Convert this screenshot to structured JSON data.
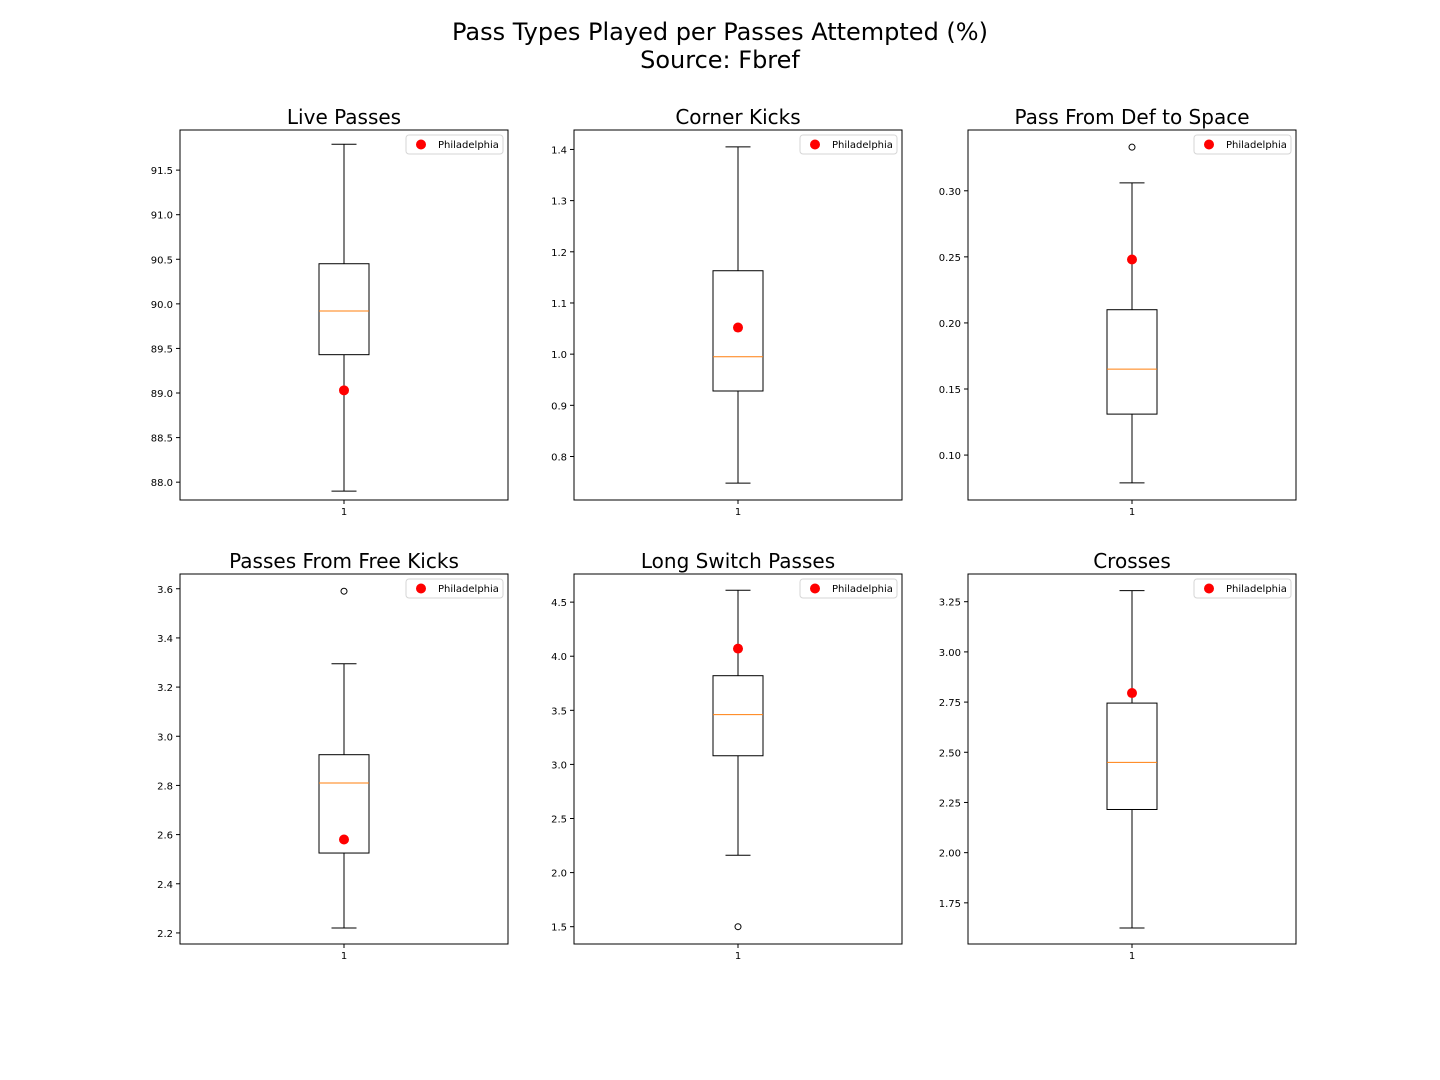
{
  "figure": {
    "title_line1": "Pass Types Played per Passes Attempted (%)",
    "title_line2": "Source: Fbref"
  },
  "chart_data": [
    {
      "type": "box",
      "title": "Live Passes",
      "categories": [
        "1"
      ],
      "ylim": [
        87.8,
        91.95
      ],
      "yticks": [
        "88.0",
        "88.5",
        "89.0",
        "89.5",
        "90.0",
        "90.5",
        "91.0",
        "91.5"
      ],
      "box": {
        "whisker_low": 87.9,
        "q1": 89.43,
        "median": 89.92,
        "q3": 90.45,
        "whisker_high": 91.79,
        "outliers": []
      },
      "highlight": {
        "name": "Philadelphia",
        "value": 89.03,
        "color": "#ff0000"
      },
      "legend": {
        "label": "Philadelphia",
        "location": "upper right"
      },
      "median_color": "#ff7f0e"
    },
    {
      "type": "box",
      "title": "Corner Kicks",
      "categories": [
        "1"
      ],
      "ylim": [
        0.715,
        1.438
      ],
      "yticks": [
        "0.8",
        "0.9",
        "1.0",
        "1.1",
        "1.2",
        "1.3",
        "1.4"
      ],
      "box": {
        "whisker_low": 0.748,
        "q1": 0.928,
        "median": 0.995,
        "q3": 1.163,
        "whisker_high": 1.405,
        "outliers": []
      },
      "highlight": {
        "name": "Philadelphia",
        "value": 1.052,
        "color": "#ff0000"
      },
      "legend": {
        "label": "Philadelphia",
        "location": "upper right"
      },
      "median_color": "#ff7f0e"
    },
    {
      "type": "box",
      "title": "Pass From Def to Space",
      "categories": [
        "1"
      ],
      "ylim": [
        0.066,
        0.346
      ],
      "yticks": [
        "0.10",
        "0.15",
        "0.20",
        "0.25",
        "0.30"
      ],
      "box": {
        "whisker_low": 0.079,
        "q1": 0.131,
        "median": 0.165,
        "q3": 0.21,
        "whisker_high": 0.306,
        "outliers": [
          0.333
        ]
      },
      "highlight": {
        "name": "Philadelphia",
        "value": 0.248,
        "color": "#ff0000"
      },
      "legend": {
        "label": "Philadelphia",
        "location": "upper right"
      },
      "median_color": "#ff7f0e"
    },
    {
      "type": "box",
      "title": "Passes From Free Kicks",
      "categories": [
        "1"
      ],
      "ylim": [
        2.155,
        3.66
      ],
      "yticks": [
        "2.2",
        "2.4",
        "2.6",
        "2.8",
        "3.0",
        "3.2",
        "3.4",
        "3.6"
      ],
      "box": {
        "whisker_low": 2.22,
        "q1": 2.525,
        "median": 2.81,
        "q3": 2.925,
        "whisker_high": 3.295,
        "outliers": [
          3.59
        ]
      },
      "highlight": {
        "name": "Philadelphia",
        "value": 2.58,
        "color": "#ff0000"
      },
      "legend": {
        "label": "Philadelphia",
        "location": "upper right"
      },
      "median_color": "#ff7f0e"
    },
    {
      "type": "box",
      "title": "Long Switch Passes",
      "categories": [
        "1"
      ],
      "ylim": [
        1.34,
        4.76
      ],
      "yticks": [
        "1.5",
        "2.0",
        "2.5",
        "3.0",
        "3.5",
        "4.0",
        "4.5"
      ],
      "box": {
        "whisker_low": 2.16,
        "q1": 3.08,
        "median": 3.46,
        "q3": 3.82,
        "whisker_high": 4.61,
        "outliers": [
          1.5
        ]
      },
      "highlight": {
        "name": "Philadelphia",
        "value": 4.07,
        "color": "#ff0000"
      },
      "legend": {
        "label": "Philadelphia",
        "location": "upper right"
      },
      "median_color": "#ff7f0e"
    },
    {
      "type": "box",
      "title": "Crosses",
      "categories": [
        "1"
      ],
      "ylim": [
        1.545,
        3.388
      ],
      "yticks": [
        "1.75",
        "2.00",
        "2.25",
        "2.50",
        "2.75",
        "3.00",
        "3.25"
      ],
      "box": {
        "whisker_low": 1.625,
        "q1": 2.215,
        "median": 2.45,
        "q3": 2.745,
        "whisker_high": 3.305,
        "outliers": []
      },
      "highlight": {
        "name": "Philadelphia",
        "value": 2.795,
        "color": "#ff0000"
      },
      "legend": {
        "label": "Philadelphia",
        "location": "upper right"
      },
      "median_color": "#ff7f0e"
    }
  ]
}
